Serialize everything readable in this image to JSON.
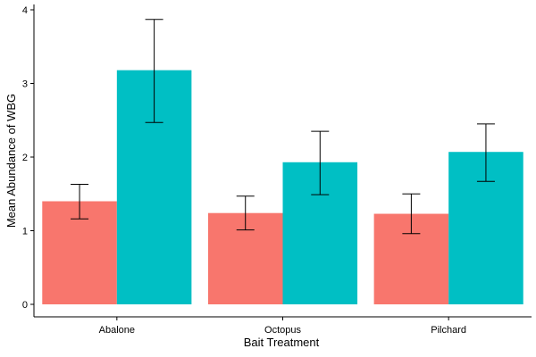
{
  "chart_data": {
    "type": "bar",
    "title": "",
    "xlabel": "Bait Treatment",
    "ylabel": "Mean Abundance of WBG",
    "categories": [
      "Abalone",
      "Octopus",
      "Pilchard"
    ],
    "series": [
      {
        "color": "#F8766D",
        "values": [
          1.4,
          1.24,
          1.23
        ],
        "error_low": [
          1.16,
          1.01,
          0.96
        ],
        "error_high": [
          1.63,
          1.47,
          1.5
        ]
      },
      {
        "color": "#00BFC4",
        "values": [
          3.18,
          1.93,
          2.07
        ],
        "error_low": [
          2.47,
          1.49,
          1.67
        ],
        "error_high": [
          3.87,
          2.35,
          2.45
        ]
      }
    ],
    "ylim": [
      0,
      4
    ],
    "yticks": [
      0,
      1,
      2,
      3,
      4
    ],
    "grid": false,
    "legend": "none"
  }
}
